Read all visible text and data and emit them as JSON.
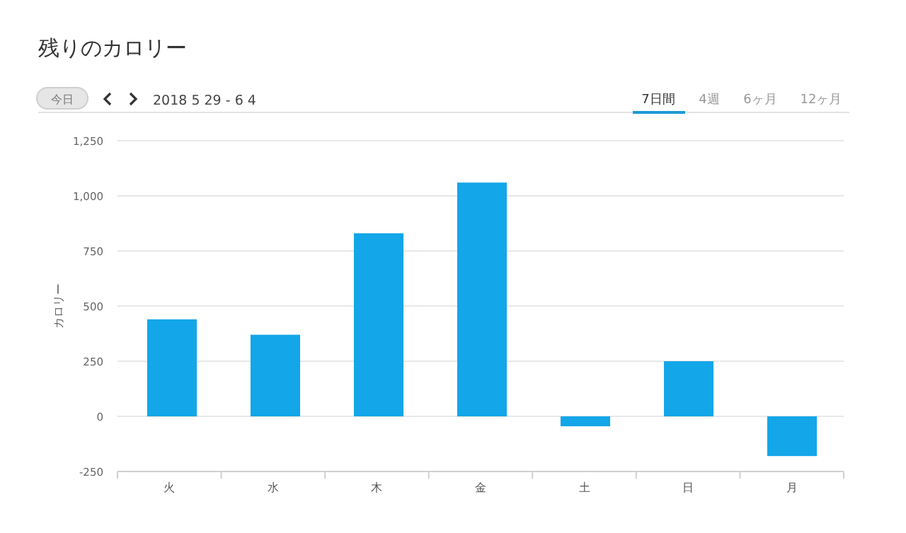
{
  "chart_data": {
    "type": "bar",
    "title": "残りのカロリー",
    "subtitle": "2018 5 29 - 6 4",
    "annotations": [
      "今日",
      "7日間",
      "4週",
      "6ヶ月",
      "12ヶ月"
    ],
    "ylabel": "カロリー",
    "categories": [
      "火",
      "水",
      "木",
      "金",
      "土",
      "日",
      "月"
    ],
    "values": [
      440,
      370,
      830,
      1060,
      -45,
      250,
      -180
    ],
    "color": "#13a6e8",
    "ylim": [
      -250,
      1250
    ],
    "yticks": [
      {
        "value": -250,
        "label": "-250"
      },
      {
        "value": 0,
        "label": "0"
      },
      {
        "value": 250,
        "label": "250"
      },
      {
        "value": 500,
        "label": "500"
      },
      {
        "value": 750,
        "label": "750"
      },
      {
        "value": 1000,
        "label": "1,000"
      },
      {
        "value": 1250,
        "label": "1,250"
      }
    ],
    "grid": "y"
  }
}
